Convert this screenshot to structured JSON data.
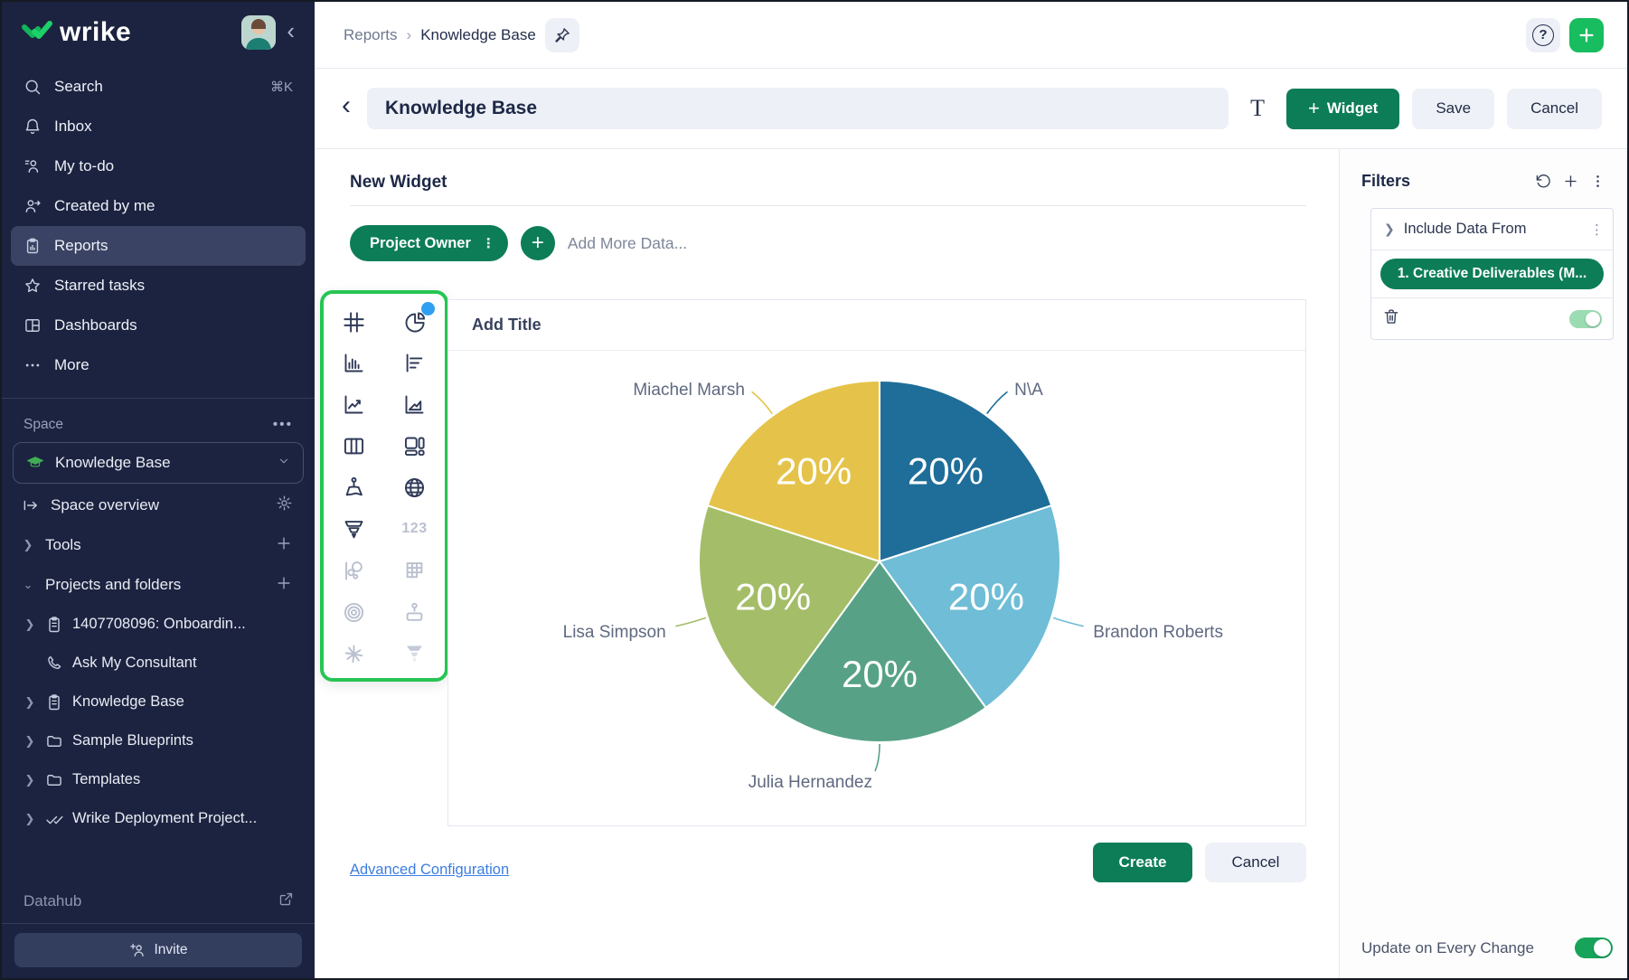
{
  "app": {
    "logo_text": "wrike",
    "collapse_glyph": "‹"
  },
  "colors": {
    "sidebar_bg": "#1c2340",
    "brand_green": "#0c7d57",
    "bright_green": "#17bd5f",
    "selector_border_green": "#27c554",
    "badge_blue": "#2f9ff2",
    "link_blue": "#3b7de2",
    "toggle_on_green": "#17a45a"
  },
  "sidebar": {
    "nav": [
      {
        "label": "Search",
        "shortcut": "⌘K"
      },
      {
        "label": "Inbox"
      },
      {
        "label": "My to-do"
      },
      {
        "label": "Created by me"
      },
      {
        "label": "Reports",
        "selected": true
      },
      {
        "label": "Starred tasks"
      },
      {
        "label": "Dashboards"
      },
      {
        "label": "More"
      }
    ],
    "space_label": "Space",
    "space_menu_glyph": "•••",
    "space_name": "Knowledge Base",
    "space_overview": "Space overview",
    "tools_label": "Tools",
    "projects_label": "Projects and folders",
    "tree": [
      {
        "label": "1407708096: Onboardin..."
      },
      {
        "label": "Ask My Consultant"
      },
      {
        "label": "Knowledge Base"
      },
      {
        "label": "Sample Blueprints"
      },
      {
        "label": "Templates"
      },
      {
        "label": "Wrike Deployment Project..."
      }
    ],
    "datahub_label": "Datahub",
    "invite_label": "Invite"
  },
  "topbar": {
    "breadcrumb": [
      "Reports",
      "Knowledge Base"
    ]
  },
  "titlebar": {
    "title_value": "Knowledge Base",
    "text_tool_label": "T",
    "add_widget_label": "Widget",
    "save_label": "Save",
    "cancel_label": "Cancel"
  },
  "builder": {
    "heading": "New Widget",
    "data_source_label": "Project Owner",
    "add_more_data_label": "Add More Data...",
    "panel_title": "Add Title",
    "numbers_icon_label": "123",
    "chart_types": [
      "table",
      "pie-chart",
      "column-chart",
      "bar-chart",
      "line-chart",
      "area-chart",
      "table-columns",
      "dashboard-layout",
      "map",
      "globe",
      "funnel",
      "numbers",
      "bubble-chart",
      "heatmap",
      "radial-rings",
      "org-chart",
      "sunburst",
      "funnel-filled"
    ],
    "selected_chart_type": "pie-chart",
    "advanced_link": "Advanced Configuration",
    "create_label": "Create",
    "cancel_label": "Cancel"
  },
  "filters": {
    "title": "Filters",
    "include_data_from": "Include Data From",
    "source_pill": "1. Creative Deliverables (M...",
    "update_label": "Update on Every Change"
  },
  "chart_data": {
    "type": "pie",
    "title": "",
    "legend": "none",
    "labels_position": "outside-with-leader-lines",
    "start_at": "top",
    "direction": "clockwise",
    "value_label_format": "{value}%",
    "slices": [
      {
        "label": "N\\A",
        "value": 20,
        "color": "#1f6e99"
      },
      {
        "label": "Brandon Roberts",
        "value": 20,
        "color": "#6fbdd6"
      },
      {
        "label": "Julia Hernandez",
        "value": 20,
        "color": "#57a287"
      },
      {
        "label": "Lisa Simpson",
        "value": 20,
        "color": "#a4bd68"
      },
      {
        "label": "Miachel Marsh",
        "value": 20,
        "color": "#e5c34a"
      }
    ]
  }
}
